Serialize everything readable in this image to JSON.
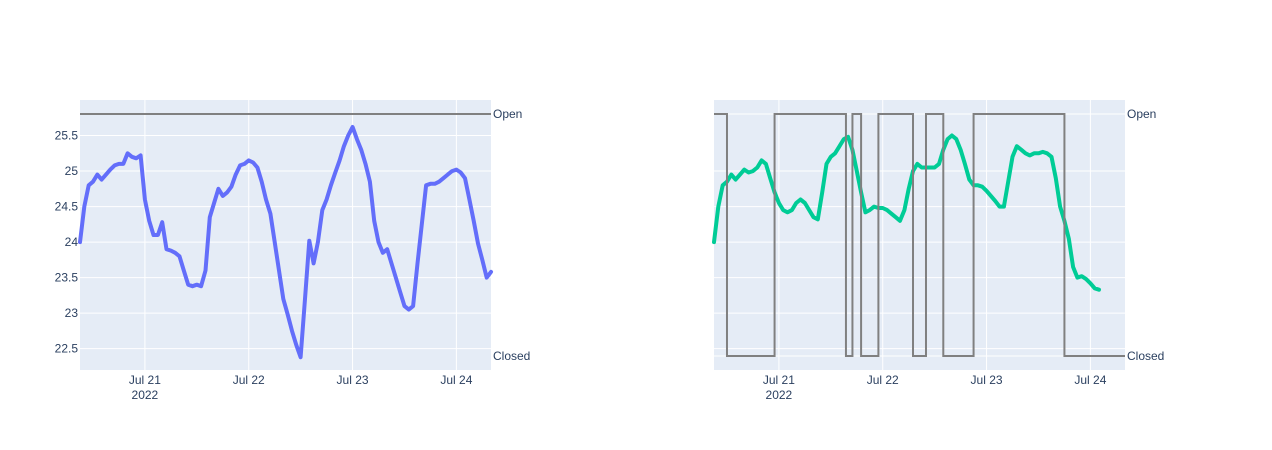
{
  "colors": {
    "plot_bg": "#E5ECF6",
    "grid": "#ffffff",
    "tick_text": "#2a3f5f",
    "series_left": "#636EFA",
    "series_right": "#00CC96",
    "state_line": "#808080"
  },
  "chart_data": [
    {
      "type": "line",
      "x_axis": {
        "type": "date",
        "tick_labels": [
          "Jul 21",
          "Jul 22",
          "Jul 23",
          "Jul 24"
        ],
        "tick_values": [
          "2022-07-21",
          "2022-07-22",
          "2022-07-23",
          "2022-07-24"
        ],
        "year_label": "2022",
        "range": [
          "2022-07-20T09:00",
          "2022-07-24T08:00"
        ]
      },
      "y_axis": {
        "tick_labels": [
          "22.5",
          "23",
          "23.5",
          "24",
          "24.5",
          "25",
          "25.5"
        ],
        "tick_values": [
          22.5,
          23,
          23.5,
          24,
          24.5,
          25,
          25.5
        ],
        "range": [
          22.2,
          26.0
        ]
      },
      "y2_axis": {
        "tick_labels": [
          "Closed",
          "Open"
        ],
        "tick_values": [
          0,
          1
        ]
      },
      "grid": true,
      "series": [
        {
          "axis": "y",
          "color": "#636EFA",
          "points": [
            [
              "2022-07-20T09:00",
              24.0
            ],
            [
              "2022-07-20T10:00",
              24.5
            ],
            [
              "2022-07-20T11:00",
              24.8
            ],
            [
              "2022-07-20T12:00",
              24.85
            ],
            [
              "2022-07-20T13:00",
              24.95
            ],
            [
              "2022-07-20T14:00",
              24.88
            ],
            [
              "2022-07-20T15:00",
              24.95
            ],
            [
              "2022-07-20T16:00",
              25.02
            ],
            [
              "2022-07-20T17:00",
              25.08
            ],
            [
              "2022-07-20T18:00",
              25.1
            ],
            [
              "2022-07-20T19:00",
              25.1
            ],
            [
              "2022-07-20T20:00",
              25.25
            ],
            [
              "2022-07-20T21:00",
              25.2
            ],
            [
              "2022-07-20T22:00",
              25.18
            ],
            [
              "2022-07-20T23:00",
              25.22
            ],
            [
              "2022-07-21T00:00",
              24.6
            ],
            [
              "2022-07-21T01:00",
              24.3
            ],
            [
              "2022-07-21T02:00",
              24.1
            ],
            [
              "2022-07-21T03:00",
              24.1
            ],
            [
              "2022-07-21T04:00",
              24.28
            ],
            [
              "2022-07-21T05:00",
              23.9
            ],
            [
              "2022-07-21T06:00",
              23.88
            ],
            [
              "2022-07-21T07:00",
              23.85
            ],
            [
              "2022-07-21T08:00",
              23.8
            ],
            [
              "2022-07-21T09:00",
              23.6
            ],
            [
              "2022-07-21T10:00",
              23.4
            ],
            [
              "2022-07-21T11:00",
              23.38
            ],
            [
              "2022-07-21T12:00",
              23.4
            ],
            [
              "2022-07-21T13:00",
              23.38
            ],
            [
              "2022-07-21T14:00",
              23.6
            ],
            [
              "2022-07-21T15:00",
              24.35
            ],
            [
              "2022-07-21T16:00",
              24.55
            ],
            [
              "2022-07-21T17:00",
              24.75
            ],
            [
              "2022-07-21T18:00",
              24.65
            ],
            [
              "2022-07-21T19:00",
              24.7
            ],
            [
              "2022-07-21T20:00",
              24.78
            ],
            [
              "2022-07-21T21:00",
              24.95
            ],
            [
              "2022-07-21T22:00",
              25.08
            ],
            [
              "2022-07-21T23:00",
              25.1
            ],
            [
              "2022-07-22T00:00",
              25.15
            ],
            [
              "2022-07-22T01:00",
              25.12
            ],
            [
              "2022-07-22T02:00",
              25.05
            ],
            [
              "2022-07-22T03:00",
              24.85
            ],
            [
              "2022-07-22T04:00",
              24.6
            ],
            [
              "2022-07-22T05:00",
              24.4
            ],
            [
              "2022-07-22T06:00",
              24.0
            ],
            [
              "2022-07-22T07:00",
              23.6
            ],
            [
              "2022-07-22T08:00",
              23.2
            ],
            [
              "2022-07-22T09:00",
              22.98
            ],
            [
              "2022-07-22T10:00",
              22.75
            ],
            [
              "2022-07-22T11:00",
              22.55
            ],
            [
              "2022-07-22T12:00",
              22.38
            ],
            [
              "2022-07-22T13:00",
              23.2
            ],
            [
              "2022-07-22T14:00",
              24.02
            ],
            [
              "2022-07-22T15:00",
              23.7
            ],
            [
              "2022-07-22T16:00",
              24.0
            ],
            [
              "2022-07-22T17:00",
              24.45
            ],
            [
              "2022-07-22T18:00",
              24.6
            ],
            [
              "2022-07-22T19:00",
              24.8
            ],
            [
              "2022-07-22T20:00",
              24.98
            ],
            [
              "2022-07-22T21:00",
              25.15
            ],
            [
              "2022-07-22T22:00",
              25.35
            ],
            [
              "2022-07-22T23:00",
              25.5
            ],
            [
              "2022-07-23T00:00",
              25.62
            ],
            [
              "2022-07-23T01:00",
              25.45
            ],
            [
              "2022-07-23T02:00",
              25.3
            ],
            [
              "2022-07-23T03:00",
              25.1
            ],
            [
              "2022-07-23T04:00",
              24.85
            ],
            [
              "2022-07-23T05:00",
              24.3
            ],
            [
              "2022-07-23T06:00",
              24.0
            ],
            [
              "2022-07-23T07:00",
              23.85
            ],
            [
              "2022-07-23T08:00",
              23.9
            ],
            [
              "2022-07-23T09:00",
              23.7
            ],
            [
              "2022-07-23T10:00",
              23.5
            ],
            [
              "2022-07-23T11:00",
              23.3
            ],
            [
              "2022-07-23T12:00",
              23.1
            ],
            [
              "2022-07-23T13:00",
              23.05
            ],
            [
              "2022-07-23T14:00",
              23.1
            ],
            [
              "2022-07-23T15:00",
              23.7
            ],
            [
              "2022-07-23T16:00",
              24.25
            ],
            [
              "2022-07-23T17:00",
              24.8
            ],
            [
              "2022-07-23T18:00",
              24.82
            ],
            [
              "2022-07-23T19:00",
              24.82
            ],
            [
              "2022-07-23T20:00",
              24.85
            ],
            [
              "2022-07-23T21:00",
              24.9
            ],
            [
              "2022-07-23T22:00",
              24.95
            ],
            [
              "2022-07-23T23:00",
              25.0
            ],
            [
              "2022-07-24T00:00",
              25.02
            ],
            [
              "2022-07-24T01:00",
              24.98
            ],
            [
              "2022-07-24T02:00",
              24.9
            ],
            [
              "2022-07-24T03:00",
              24.6
            ],
            [
              "2022-07-24T04:00",
              24.3
            ],
            [
              "2022-07-24T05:00",
              23.98
            ],
            [
              "2022-07-24T06:00",
              23.75
            ],
            [
              "2022-07-24T07:00",
              23.5
            ],
            [
              "2022-07-24T08:00",
              23.58
            ]
          ]
        },
        {
          "axis": "y2",
          "color": "#808080",
          "step": true,
          "points": [
            [
              "2022-07-20T09:00",
              1
            ],
            [
              "2022-07-24T08:00",
              1
            ]
          ]
        }
      ]
    },
    {
      "type": "line",
      "x_axis": {
        "type": "date",
        "tick_labels": [
          "Jul 21",
          "Jul 22",
          "Jul 23",
          "Jul 24"
        ],
        "tick_values": [
          "2022-07-21",
          "2022-07-22",
          "2022-07-23",
          "2022-07-24"
        ],
        "year_label": "2022",
        "range": [
          "2022-07-20T09:00",
          "2022-07-24T08:00"
        ]
      },
      "y2_axis": {
        "tick_labels": [
          "Closed",
          "Open"
        ],
        "tick_values": [
          0,
          1
        ]
      },
      "grid": true,
      "series": [
        {
          "axis": "y",
          "color": "#00CC96",
          "y_range": [
            22.2,
            26.0
          ],
          "points": [
            [
              "2022-07-20T09:00",
              24.0
            ],
            [
              "2022-07-20T10:00",
              24.5
            ],
            [
              "2022-07-20T11:00",
              24.8
            ],
            [
              "2022-07-20T12:00",
              24.85
            ],
            [
              "2022-07-20T13:00",
              24.95
            ],
            [
              "2022-07-20T14:00",
              24.88
            ],
            [
              "2022-07-20T15:00",
              24.95
            ],
            [
              "2022-07-20T16:00",
              25.02
            ],
            [
              "2022-07-20T17:00",
              24.98
            ],
            [
              "2022-07-20T18:00",
              25.0
            ],
            [
              "2022-07-20T19:00",
              25.05
            ],
            [
              "2022-07-20T20:00",
              25.15
            ],
            [
              "2022-07-20T21:00",
              25.1
            ],
            [
              "2022-07-20T22:00",
              24.9
            ],
            [
              "2022-07-20T23:00",
              24.7
            ],
            [
              "2022-07-21T00:00",
              24.55
            ],
            [
              "2022-07-21T01:00",
              24.45
            ],
            [
              "2022-07-21T02:00",
              24.42
            ],
            [
              "2022-07-21T03:00",
              24.45
            ],
            [
              "2022-07-21T04:00",
              24.55
            ],
            [
              "2022-07-21T05:00",
              24.6
            ],
            [
              "2022-07-21T06:00",
              24.55
            ],
            [
              "2022-07-21T07:00",
              24.45
            ],
            [
              "2022-07-21T08:00",
              24.35
            ],
            [
              "2022-07-21T09:00",
              24.32
            ],
            [
              "2022-07-21T10:00",
              24.7
            ],
            [
              "2022-07-21T11:00",
              25.1
            ],
            [
              "2022-07-21T12:00",
              25.2
            ],
            [
              "2022-07-21T13:00",
              25.25
            ],
            [
              "2022-07-21T14:00",
              25.35
            ],
            [
              "2022-07-21T15:00",
              25.45
            ],
            [
              "2022-07-21T16:00",
              25.48
            ],
            [
              "2022-07-21T17:00",
              25.3
            ],
            [
              "2022-07-21T18:00",
              25.0
            ],
            [
              "2022-07-21T19:00",
              24.7
            ],
            [
              "2022-07-21T20:00",
              24.42
            ],
            [
              "2022-07-21T21:00",
              24.45
            ],
            [
              "2022-07-21T22:00",
              24.5
            ],
            [
              "2022-07-21T23:00",
              24.48
            ],
            [
              "2022-07-22T00:00",
              24.48
            ],
            [
              "2022-07-22T01:00",
              24.45
            ],
            [
              "2022-07-22T02:00",
              24.4
            ],
            [
              "2022-07-22T03:00",
              24.35
            ],
            [
              "2022-07-22T04:00",
              24.3
            ],
            [
              "2022-07-22T05:00",
              24.45
            ],
            [
              "2022-07-22T06:00",
              24.75
            ],
            [
              "2022-07-22T07:00",
              25.0
            ],
            [
              "2022-07-22T08:00",
              25.1
            ],
            [
              "2022-07-22T09:00",
              25.05
            ],
            [
              "2022-07-22T10:00",
              25.05
            ],
            [
              "2022-07-22T11:00",
              25.05
            ],
            [
              "2022-07-22T12:00",
              25.05
            ],
            [
              "2022-07-22T13:00",
              25.1
            ],
            [
              "2022-07-22T14:00",
              25.3
            ],
            [
              "2022-07-22T15:00",
              25.45
            ],
            [
              "2022-07-22T16:00",
              25.5
            ],
            [
              "2022-07-22T17:00",
              25.45
            ],
            [
              "2022-07-22T18:00",
              25.3
            ],
            [
              "2022-07-22T19:00",
              25.1
            ],
            [
              "2022-07-22T20:00",
              24.88
            ],
            [
              "2022-07-22T21:00",
              24.8
            ],
            [
              "2022-07-22T22:00",
              24.8
            ],
            [
              "2022-07-22T23:00",
              24.78
            ],
            [
              "2022-07-23T00:00",
              24.72
            ],
            [
              "2022-07-23T01:00",
              24.65
            ],
            [
              "2022-07-23T02:00",
              24.58
            ],
            [
              "2022-07-23T03:00",
              24.5
            ],
            [
              "2022-07-23T04:00",
              24.5
            ],
            [
              "2022-07-23T05:00",
              24.85
            ],
            [
              "2022-07-23T06:00",
              25.2
            ],
            [
              "2022-07-23T07:00",
              25.35
            ],
            [
              "2022-07-23T08:00",
              25.3
            ],
            [
              "2022-07-23T09:00",
              25.25
            ],
            [
              "2022-07-23T10:00",
              25.22
            ],
            [
              "2022-07-23T11:00",
              25.25
            ],
            [
              "2022-07-23T12:00",
              25.25
            ],
            [
              "2022-07-23T13:00",
              25.27
            ],
            [
              "2022-07-23T14:00",
              25.25
            ],
            [
              "2022-07-23T15:00",
              25.2
            ],
            [
              "2022-07-23T16:00",
              24.9
            ],
            [
              "2022-07-23T17:00",
              24.5
            ],
            [
              "2022-07-23T18:00",
              24.3
            ],
            [
              "2022-07-23T19:00",
              24.05
            ],
            [
              "2022-07-23T20:00",
              23.65
            ],
            [
              "2022-07-23T21:00",
              23.5
            ],
            [
              "2022-07-23T22:00",
              23.52
            ],
            [
              "2022-07-23T23:00",
              23.48
            ],
            [
              "2022-07-24T00:00",
              23.42
            ],
            [
              "2022-07-24T01:00",
              23.35
            ],
            [
              "2022-07-24T02:00",
              23.33
            ]
          ]
        },
        {
          "axis": "y2",
          "color": "#808080",
          "step": true,
          "points": [
            [
              "2022-07-20T09:00",
              1
            ],
            [
              "2022-07-20T12:00",
              0
            ],
            [
              "2022-07-20T23:00",
              1
            ],
            [
              "2022-07-21T15:30",
              0
            ],
            [
              "2022-07-21T17:00",
              1
            ],
            [
              "2022-07-21T19:00",
              0
            ],
            [
              "2022-07-21T23:00",
              1
            ],
            [
              "2022-07-22T07:00",
              0
            ],
            [
              "2022-07-22T10:00",
              1
            ],
            [
              "2022-07-22T14:00",
              0
            ],
            [
              "2022-07-22T21:00",
              1
            ],
            [
              "2022-07-23T18:00",
              0
            ],
            [
              "2022-07-24T08:00",
              0
            ]
          ]
        }
      ]
    }
  ]
}
